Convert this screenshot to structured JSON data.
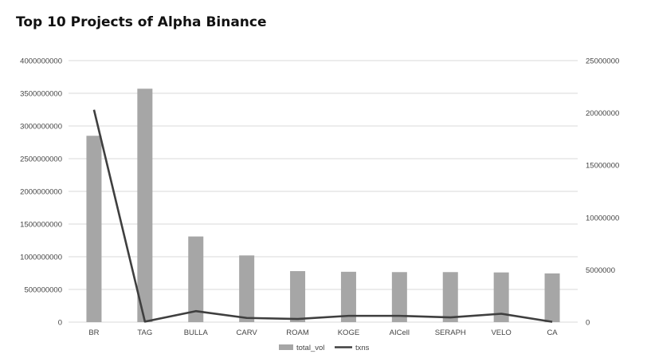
{
  "chart_data": {
    "type": "bar",
    "title": "Top 10 Projects of Alpha Binance",
    "categories": [
      "BR",
      "TAG",
      "BULLA",
      "CARV",
      "ROAM",
      "KOGE",
      "AICell",
      "SERAPH",
      "VELO",
      "CA"
    ],
    "series": [
      {
        "name": "total_vol",
        "type": "bar",
        "axis": "left",
        "values": [
          2850000000,
          3570000000,
          1310000000,
          1020000000,
          780000000,
          770000000,
          765000000,
          765000000,
          760000000,
          745000000
        ]
      },
      {
        "name": "txns",
        "type": "line",
        "axis": "right",
        "values": [
          20300000,
          50000,
          1050000,
          400000,
          300000,
          600000,
          600000,
          450000,
          800000,
          30000
        ]
      }
    ],
    "y_left": {
      "min": 0,
      "max": 4000000000,
      "ticks": [
        "0",
        "500000000",
        "1000000000",
        "1500000000",
        "2000000000",
        "2500000000",
        "3000000000",
        "3500000000",
        "4000000000"
      ]
    },
    "y_right": {
      "min": 0,
      "max": 25000000,
      "ticks": [
        "0",
        "5000000",
        "10000000",
        "15000000",
        "20000000",
        "25000000"
      ]
    },
    "grid": true,
    "legend_position": "bottom",
    "colors": {
      "bar": "#a6a6a6",
      "line": "#3f3f3f",
      "grid": "#d9d9d9"
    }
  }
}
